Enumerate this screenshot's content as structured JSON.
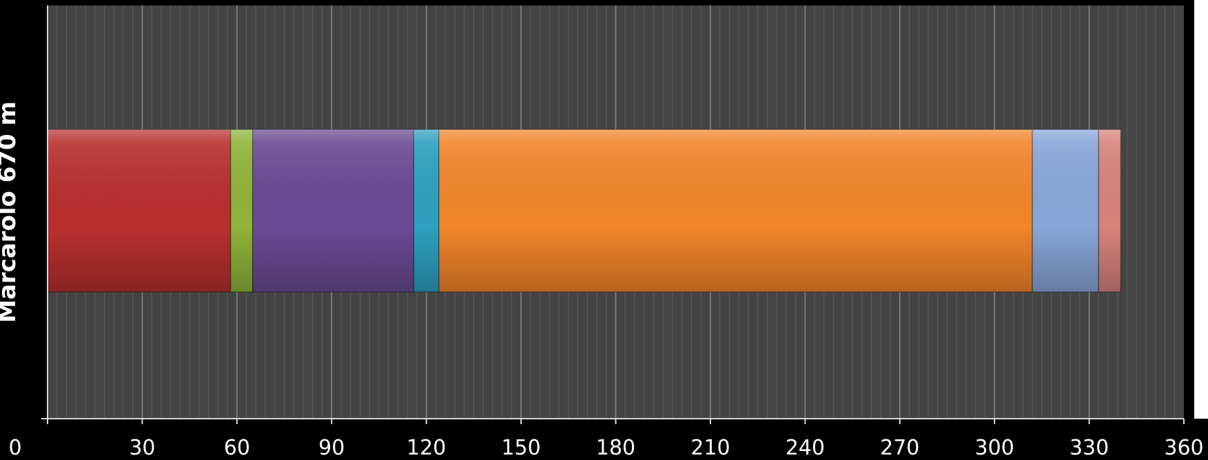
{
  "chart_data": {
    "type": "bar",
    "orientation": "horizontal",
    "stacked": true,
    "categories": [
      "Marcarolo 670 m"
    ],
    "ylabel": "Marcarolo 670 m",
    "xlabel": "",
    "xlim": [
      0,
      360
    ],
    "xticks": [
      0,
      30,
      60,
      90,
      120,
      150,
      180,
      210,
      240,
      270,
      300,
      330,
      360
    ],
    "grid": true,
    "legend": "none",
    "segments": [
      {
        "start": 0,
        "end": 58,
        "color": "#b8302e"
      },
      {
        "start": 58,
        "end": 65,
        "color": "#8db53a"
      },
      {
        "start": 65,
        "end": 116,
        "color": "#6b4a94"
      },
      {
        "start": 116,
        "end": 124,
        "color": "#2ea0c0"
      },
      {
        "start": 124,
        "end": 312,
        "color": "#f2852a"
      },
      {
        "start": 312,
        "end": 333,
        "color": "#88a6d8"
      },
      {
        "start": 333,
        "end": 340,
        "color": "#d9827c"
      }
    ]
  }
}
